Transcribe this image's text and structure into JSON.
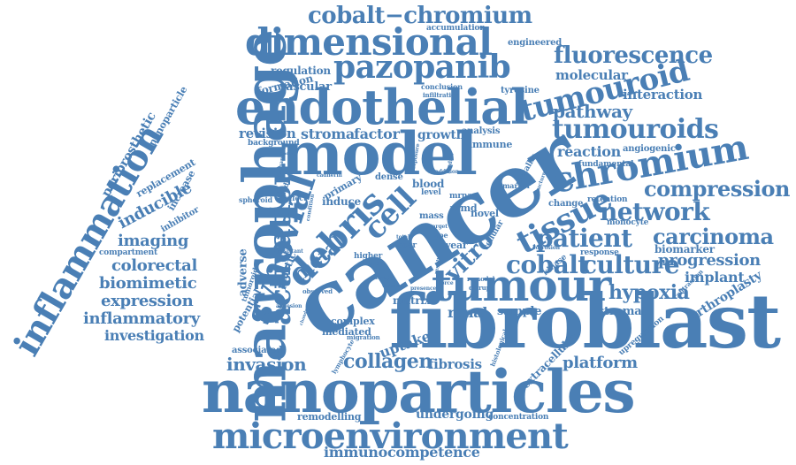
{
  "color": "#4a7fb5",
  "words": {
    "cancer": "cancer",
    "fibroblast": "fibroblast",
    "nanoparticles": "nanoparticles",
    "macrophage": "macrophage",
    "model": "model",
    "endothelial": "endothelial",
    "tumour": "tumour",
    "microenvironment": "microenvironment",
    "inflammation": "inflammation",
    "dimensional": "dimensional",
    "pazopanib": "pazopanib",
    "chromium": "chromium",
    "cobalt_chromium": "cobalt−chromium",
    "fluorescence": "fluorescence",
    "tumouroid": "tumouroid",
    "tumouroids": "tumouroids",
    "pathway": "pathway",
    "synovial": "synovial",
    "activation": "activation",
    "debris": "debris",
    "metal": "metal",
    "cell": "cell",
    "tissue": "tissue",
    "vitro": "vitro",
    "network": "network",
    "patient": "patient",
    "cobalt": "cobalt",
    "culture": "culture",
    "carcinoma": "carcinoma",
    "progression": "progression",
    "compression": "compression",
    "hypoxia": "hypoxia",
    "collagen": "collagen",
    "invasion": "invasion",
    "platform": "platform",
    "imaging": "imaging",
    "colorectal": "colorectal",
    "biomimetic": "biomimetic",
    "expression": "expression",
    "inflammatory": "inflammatory",
    "investigation": "investigation",
    "inducible": "inducible",
    "revision": "revision",
    "stroma": "stroma",
    "factor": "factor",
    "growth": "growth",
    "reaction": "reaction",
    "interaction": "interaction",
    "molecular": "molecular",
    "regulation": "regulation",
    "formation": "formation",
    "vascular": "vascular",
    "accumulation": "accumulation",
    "engineered": "engineered",
    "periprosthetic": "periprosthetic",
    "nanoparticle": "nanoparticle",
    "replacement": "replacement",
    "increase": "increase",
    "inhibitor": "inhibitor",
    "compartment": "compartment",
    "biomarker": "biomarker",
    "implant": "implant",
    "arthroplasty": "arthroplasty",
    "stromal": "stromal",
    "renal": "renal",
    "sample": "sample",
    "matrix": "matrix",
    "uptake": "uptake",
    "fibrosis": "fibrosis",
    "remodelling": "remodelling",
    "undergoing": "undergoing",
    "concentration": "concentration",
    "immunocompetence": "immunocompetence",
    "associated": "associated",
    "adverse": "adverse",
    "angiogenic": "angiogenic",
    "fundamental": "fundamental",
    "immune": "immune",
    "analysis": "analysis",
    "blood": "blood",
    "dense": "dense",
    "induce": "induce",
    "primary": "primary",
    "novel": "novel",
    "armd": "armd",
    "mass": "mass",
    "wear": "wear",
    "higher": "higher",
    "complex": "complex",
    "mediated": "mediated",
    "plastic": "plastic",
    "potential": "potential",
    "background": "background",
    "tyrosine": "tyrosine",
    "retention": "retention",
    "change": "change",
    "monocyte": "monocyte",
    "response": "response",
    "upregulation": "upregulation",
    "extracellular": "extracellular",
    "migration": "migration",
    "cocr": "cocr",
    "marker": "marker",
    "level": "level",
    "kinase": "kinase",
    "type": "type",
    "mrna": "mrna",
    "metallic": "metallic",
    "conclusion": "conclusion",
    "infiltration": "infiltration",
    "cadherin": "cadherin",
    "spheroid": "spheroid",
    "resistant": "resistant",
    "observed": "observed",
    "adhesion": "adhesion",
    "tumoroid": "tumoroid",
    "effect": "effect",
    "mediate": "mediate",
    "mechanism": "mechanism",
    "exposure": "exposure",
    "lymphocyte": "lymphocyte",
    "histological": "histological",
    "contraction": "contraction",
    "cellular": "cellular",
    "remodel": "remodel",
    "result": "result",
    "disrupt": "disrupt",
    "therapy": "therapy",
    "visibility": "visibility",
    "presence": "presence",
    "studies": "studies",
    "corrosion": "corrosion",
    "total": "total",
    "target": "target",
    "reactive": "reactive",
    "structure": "structure",
    "condition": "condition",
    "chondrocyte": "chondrocyte",
    "addition": "addition",
    "force": "force",
    "finding": "finding"
  }
}
